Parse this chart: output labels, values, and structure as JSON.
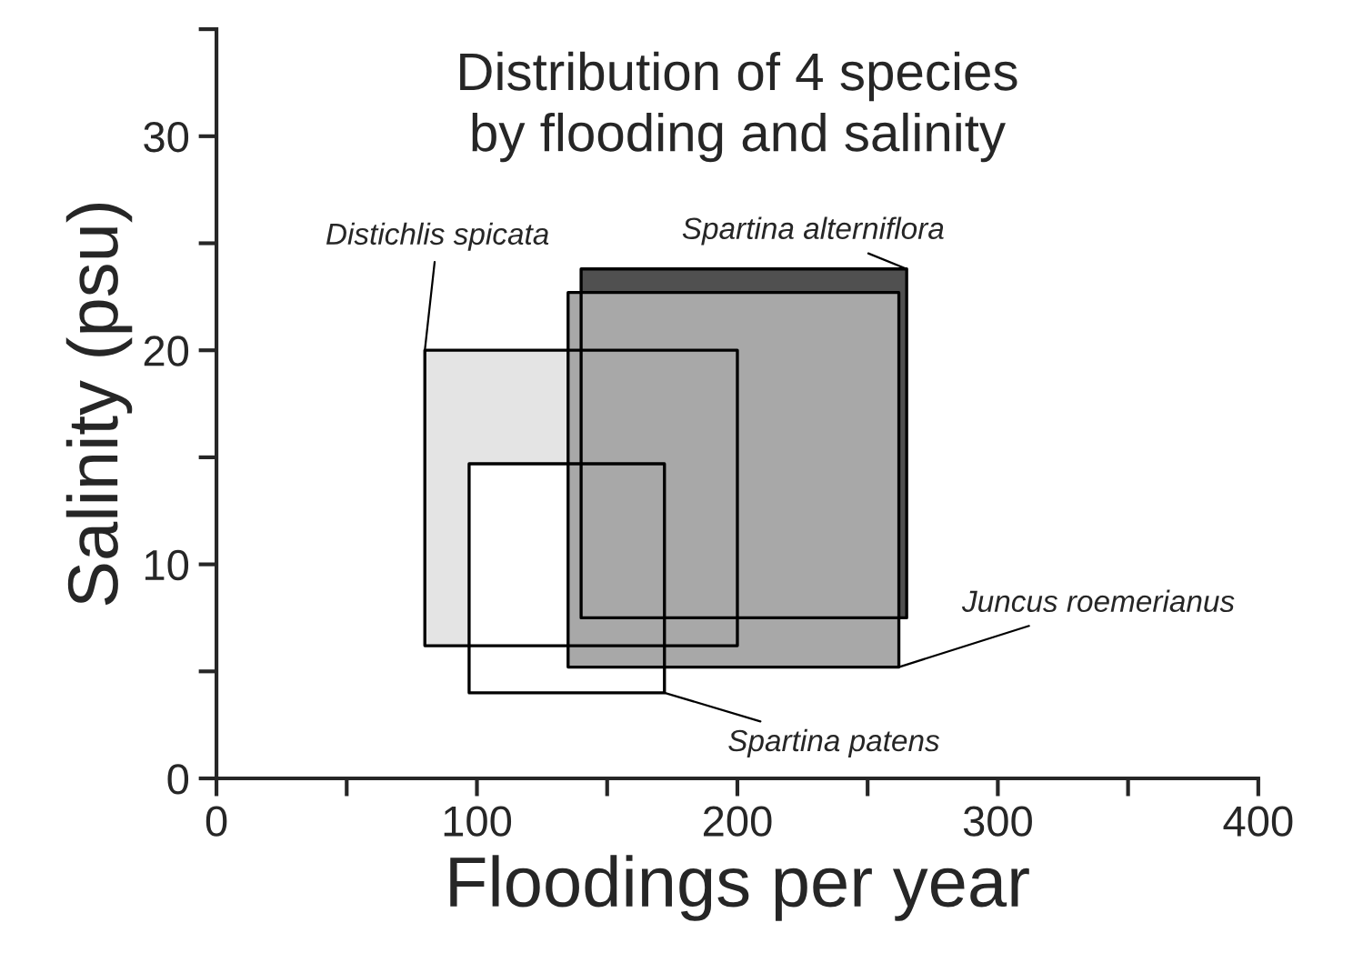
{
  "chart_data": {
    "type": "area",
    "title": "Distribution of 4 species\nby flooding and salinity",
    "xlabel": "Floodings per year",
    "ylabel": "Salinity (psu)",
    "xlim": [
      0,
      400
    ],
    "ylim": [
      0,
      35
    ],
    "xticks": [
      0,
      {
        "value": 50,
        "label": null
      },
      100,
      {
        "value": 150,
        "label": null
      },
      200,
      {
        "value": 250,
        "label": null
      },
      300,
      {
        "value": 350,
        "label": null
      },
      400
    ],
    "yticks": [
      0,
      {
        "value": 5,
        "label": null
      },
      10,
      {
        "value": 15,
        "label": null
      },
      20,
      {
        "value": 25,
        "label": null
      },
      30,
      {
        "value": 35,
        "label": null
      }
    ],
    "grid": false,
    "line_style": "solid",
    "series": [
      {
        "name": "Distichlis spicata",
        "color": "#e4e4e4",
        "x": [
          80,
          200,
          200,
          80,
          80
        ],
        "values": [
          6.2,
          6.2,
          20,
          20,
          6.2
        ]
      },
      {
        "name": "Spartina alterniflora",
        "color": "#505050",
        "x": [
          140,
          265,
          265,
          140,
          140
        ],
        "values": [
          7.5,
          7.5,
          23.8,
          23.8,
          7.5
        ]
      },
      {
        "name": "Spartina patens",
        "color": "#ffffff",
        "x": [
          97,
          172,
          172,
          97,
          97
        ],
        "values": [
          4,
          4,
          14.7,
          14.7,
          4
        ]
      },
      {
        "name": "Juncus roemerianus",
        "color": "#a8a8a8",
        "x": [
          135,
          262,
          262,
          135,
          135
        ],
        "values": [
          5.2,
          5.2,
          22.7,
          22.7,
          5.2
        ]
      }
    ]
  }
}
